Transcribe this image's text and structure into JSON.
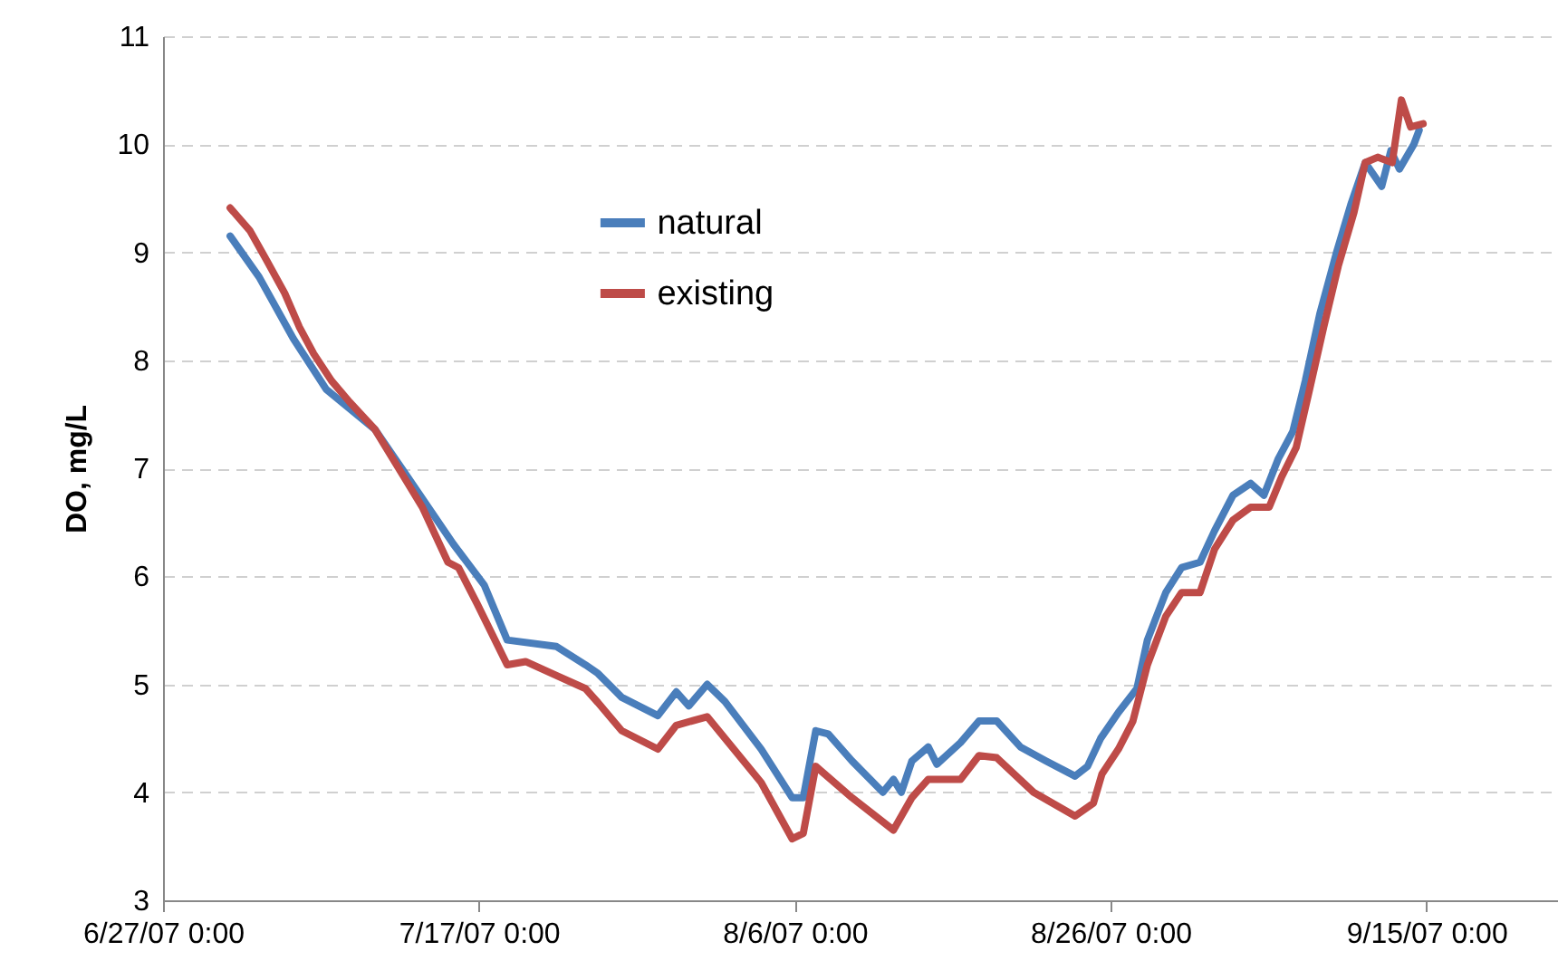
{
  "chart_data": {
    "type": "line",
    "ylabel": "DO, mg/L",
    "grid": "y",
    "legend": "top",
    "marker": "none",
    "line_style": "solid",
    "xlim": [
      "2007-06-27",
      "2007-09-23T08:00"
    ],
    "xticks": [
      {
        "value": "2007-06-27",
        "label": "6/27/07 0:00"
      },
      {
        "value": "2007-07-17",
        "label": "7/17/07 0:00"
      },
      {
        "value": "2007-08-06",
        "label": "8/6/07 0:00"
      },
      {
        "value": "2007-08-26",
        "label": "8/26/07 0:00"
      },
      {
        "value": "2007-09-15",
        "label": "9/15/07 0:00"
      }
    ],
    "ylim": [
      3,
      11
    ],
    "yticks": [
      3,
      4,
      5,
      6,
      7,
      8,
      9,
      10,
      11
    ],
    "series": [
      {
        "name": "natural",
        "color": "#4a7ebb",
        "x": [
          "2007-07-01T06:00",
          "2007-07-03T02:00",
          "2007-07-05T06:00",
          "2007-07-07T08:00",
          "2007-07-10T10:00",
          "2007-07-12T06:00",
          "2007-07-15T09:00",
          "2007-07-17T08:00",
          "2007-07-18T19:00",
          "2007-07-21T22:00",
          "2007-07-23T18:00",
          "2007-07-24T13:00",
          "2007-07-26T01:00",
          "2007-07-28T08:00",
          "2007-07-29T12:00",
          "2007-07-30T07:00",
          "2007-07-31T11:00",
          "2007-08-01T14:00",
          "2007-08-03T21:00",
          "2007-08-05T20:00",
          "2007-08-06T13:00",
          "2007-08-07T08:00",
          "2007-08-08T03:00",
          "2007-08-09T15:00",
          "2007-08-11T14:00",
          "2007-08-12T06:00",
          "2007-08-12T18:00",
          "2007-08-13T10:00",
          "2007-08-14T11:00",
          "2007-08-15T00:00",
          "2007-08-16T12:00",
          "2007-08-17T16:00",
          "2007-08-18T19:00",
          "2007-08-20T07:00",
          "2007-08-21T22:00",
          "2007-08-23T18:00",
          "2007-08-24T13:00",
          "2007-08-25T09:00",
          "2007-08-26T12:00",
          "2007-08-27T16:00",
          "2007-08-28T08:00",
          "2007-08-29T12:00",
          "2007-08-30T12:00",
          "2007-08-31T16:00",
          "2007-09-01T14:00",
          "2007-09-02T18:00",
          "2007-09-03T21:00",
          "2007-09-04T17:00",
          "2007-09-05T15:00",
          "2007-09-06T13:00",
          "2007-09-07T08:00",
          "2007-09-08T06:00",
          "2007-09-09T07:00",
          "2007-09-10T05:00",
          "2007-09-11T03:00",
          "2007-09-12T04:00",
          "2007-09-12T18:00",
          "2007-09-13T07:00",
          "2007-09-14T05:00",
          "2007-09-14T13:00"
        ],
        "values": [
          9.15,
          8.77,
          8.2,
          7.73,
          7.36,
          6.97,
          6.3,
          5.92,
          5.41,
          5.35,
          5.18,
          5.1,
          4.88,
          4.71,
          4.93,
          4.8,
          5.0,
          4.84,
          4.4,
          3.95,
          3.95,
          4.57,
          4.54,
          4.29,
          4.0,
          4.12,
          4.0,
          4.29,
          4.42,
          4.26,
          4.46,
          4.66,
          4.66,
          4.42,
          4.29,
          4.15,
          4.24,
          4.5,
          4.74,
          4.96,
          5.41,
          5.85,
          6.08,
          6.13,
          6.42,
          6.75,
          6.86,
          6.75,
          7.09,
          7.34,
          7.81,
          8.43,
          8.99,
          9.44,
          9.83,
          9.61,
          9.94,
          9.77,
          10.0,
          10.13
        ]
      },
      {
        "name": "existing",
        "color": "#be4b48",
        "x": [
          "2007-07-01T06:00",
          "2007-07-02T12:00",
          "2007-07-03T13:00",
          "2007-07-04T17:00",
          "2007-07-05T15:00",
          "2007-07-06T13:00",
          "2007-07-07T16:00",
          "2007-07-08T20:00",
          "2007-07-10T10:00",
          "2007-07-12T06:00",
          "2007-07-13T10:00",
          "2007-07-15T01:00",
          "2007-07-15T17:00",
          "2007-07-16T21:00",
          "2007-07-18T19:00",
          "2007-07-19T23:00",
          "2007-07-21T22:00",
          "2007-07-23T18:00",
          "2007-07-24T13:00",
          "2007-07-26T01:00",
          "2007-07-28T08:00",
          "2007-07-29T12:00",
          "2007-07-31T11:00",
          "2007-08-03T21:00",
          "2007-08-05T20:00",
          "2007-08-06T13:00",
          "2007-08-07T08:00",
          "2007-08-09T15:00",
          "2007-08-12T06:00",
          "2007-08-13T10:00",
          "2007-08-14T11:00",
          "2007-08-16T12:00",
          "2007-08-17T16:00",
          "2007-08-18T19:00",
          "2007-08-21T03:00",
          "2007-08-23T18:00",
          "2007-08-24T22:00",
          "2007-08-25T11:00",
          "2007-08-26T12:00",
          "2007-08-27T10:00",
          "2007-08-28T08:00",
          "2007-08-29T12:00",
          "2007-08-30T12:00",
          "2007-08-31T16:00",
          "2007-09-01T14:00",
          "2007-09-02T18:00",
          "2007-09-03T21:00",
          "2007-09-05T01:00",
          "2007-09-05T20:00",
          "2007-09-06T18:00",
          "2007-09-07T13:00",
          "2007-09-08T12:00",
          "2007-09-09T10:00",
          "2007-09-10T10:00",
          "2007-09-11T03:00",
          "2007-09-11T22:00",
          "2007-09-12T20:00",
          "2007-09-13T10:00",
          "2007-09-14T00:00",
          "2007-09-14T19:00"
        ],
        "values": [
          9.41,
          9.2,
          8.93,
          8.62,
          8.31,
          8.06,
          7.81,
          7.61,
          7.36,
          6.92,
          6.64,
          6.13,
          6.08,
          5.75,
          5.18,
          5.21,
          5.08,
          4.96,
          4.83,
          4.57,
          4.4,
          4.62,
          4.7,
          4.09,
          3.57,
          3.62,
          4.24,
          3.95,
          3.65,
          3.95,
          4.12,
          4.12,
          4.34,
          4.32,
          4.0,
          3.78,
          3.9,
          4.17,
          4.4,
          4.66,
          5.18,
          5.63,
          5.85,
          5.85,
          6.25,
          6.52,
          6.64,
          6.64,
          6.92,
          7.19,
          7.69,
          8.31,
          8.87,
          9.37,
          9.83,
          9.88,
          9.83,
          10.41,
          10.16,
          10.19
        ]
      }
    ]
  }
}
